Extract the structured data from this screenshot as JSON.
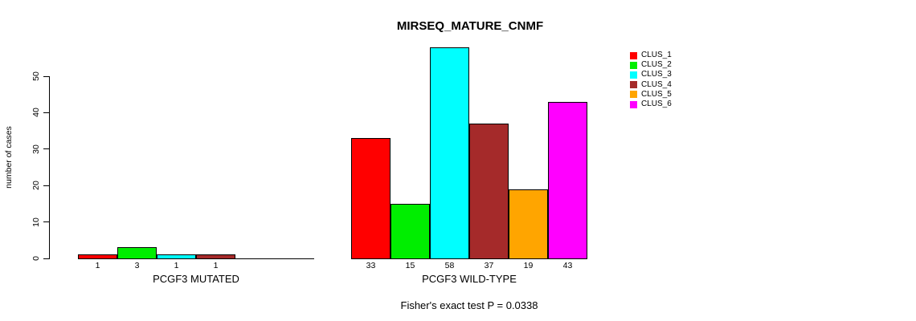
{
  "title": "MIRSEQ_MATURE_CNMF",
  "chart_data": {
    "type": "bar",
    "title": "MIRSEQ_MATURE_CNMF",
    "xlabel": "",
    "ylabel": "number of cases",
    "yticks": [
      0,
      10,
      20,
      30,
      40,
      50
    ],
    "ylim": [
      0,
      58
    ],
    "grid": false,
    "legend_position": "right-outside-top",
    "bar_outline_color": "#000000",
    "axis_color": "#000000",
    "series": [
      {
        "name": "CLUS_1",
        "color": "#ff0000"
      },
      {
        "name": "CLUS_2",
        "color": "#00ee00"
      },
      {
        "name": "CLUS_3",
        "color": "#00ffff"
      },
      {
        "name": "CLUS_4",
        "color": "#a52a2a"
      },
      {
        "name": "CLUS_5",
        "color": "#ffa500"
      },
      {
        "name": "CLUS_6",
        "color": "#ff00ff"
      }
    ],
    "groups": [
      {
        "label": "PCGF3 MUTATED",
        "values": [
          1,
          3,
          1,
          1,
          0,
          0
        ],
        "bar_labels": [
          "1",
          "3",
          "1",
          "1",
          "",
          ""
        ]
      },
      {
        "label": "PCGF3 WILD-TYPE",
        "values": [
          33,
          15,
          58,
          37,
          19,
          43
        ],
        "bar_labels": [
          "33",
          "15",
          "58",
          "37",
          "19",
          "43"
        ]
      }
    ],
    "annotation": "Fisher's exact test P = 0.0338"
  }
}
